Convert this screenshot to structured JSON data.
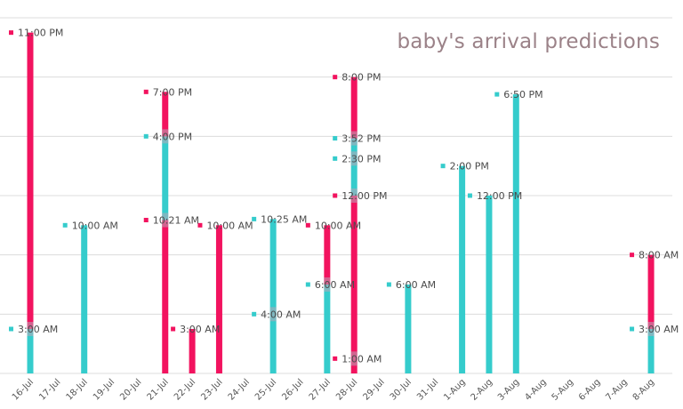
{
  "chart_data": {
    "type": "bar",
    "title": "baby's arrival predictions",
    "xlabel": "",
    "ylabel": "",
    "ylim": [
      "12:00 AM",
      "12:00 AM"
    ],
    "grid": true,
    "categories": [
      "16-Jul",
      "17-Jul",
      "18-Jul",
      "19-Jul",
      "20-Jul",
      "21-Jul",
      "22-Jul",
      "23-Jul",
      "24-Jul",
      "25-Jul",
      "26-Jul",
      "27-Jul",
      "28-Jul",
      "29-Jul",
      "30-Jul",
      "31-Jul",
      "1-Aug",
      "2-Aug",
      "3-Aug",
      "4-Aug",
      "5-Aug",
      "6-Aug",
      "7-Aug",
      "8-Aug"
    ],
    "series_colors": {
      "pink": "#f2135f",
      "teal": "#35cccc"
    },
    "points": [
      {
        "date": "16-Jul",
        "time": "11:00 PM",
        "color": "pink"
      },
      {
        "date": "16-Jul",
        "time": "3:00 AM",
        "color": "teal"
      },
      {
        "date": "18-Jul",
        "time": "10:00 AM",
        "color": "teal"
      },
      {
        "date": "21-Jul",
        "time": "7:00 PM",
        "color": "pink"
      },
      {
        "date": "21-Jul",
        "time": "4:00 PM",
        "color": "teal"
      },
      {
        "date": "21-Jul",
        "time": "10:21 AM",
        "color": "pink"
      },
      {
        "date": "22-Jul",
        "time": "3:00 AM",
        "color": "pink"
      },
      {
        "date": "23-Jul",
        "time": "10:00 AM",
        "color": "pink"
      },
      {
        "date": "25-Jul",
        "time": "10:25 AM",
        "color": "teal"
      },
      {
        "date": "25-Jul",
        "time": "4:00 AM",
        "color": "teal"
      },
      {
        "date": "27-Jul",
        "time": "10:00 AM",
        "color": "pink"
      },
      {
        "date": "27-Jul",
        "time": "6:00 AM",
        "color": "teal"
      },
      {
        "date": "28-Jul",
        "time": "8:00 PM",
        "color": "pink"
      },
      {
        "date": "28-Jul",
        "time": "3:52 PM",
        "color": "teal"
      },
      {
        "date": "28-Jul",
        "time": "2:30 PM",
        "color": "teal"
      },
      {
        "date": "28-Jul",
        "time": "12:00 PM",
        "color": "pink"
      },
      {
        "date": "28-Jul",
        "time": "1:00 AM",
        "color": "pink"
      },
      {
        "date": "30-Jul",
        "time": "6:00 AM",
        "color": "teal"
      },
      {
        "date": "1-Aug",
        "time": "2:00 PM",
        "color": "teal"
      },
      {
        "date": "2-Aug",
        "time": "12:00 PM",
        "color": "teal"
      },
      {
        "date": "3-Aug",
        "time": "6:50 PM",
        "color": "teal"
      },
      {
        "date": "8-Aug",
        "time": "8:00 AM",
        "color": "pink"
      },
      {
        "date": "8-Aug",
        "time": "3:00 AM",
        "color": "teal"
      }
    ]
  }
}
